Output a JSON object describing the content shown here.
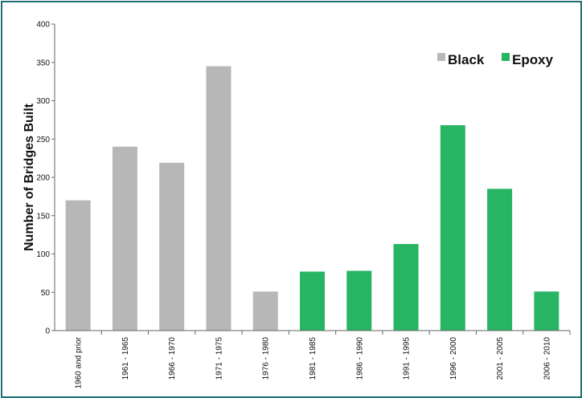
{
  "chart_data": {
    "type": "bar",
    "ylabel": "Number of Bridges Built",
    "xlabel": "",
    "ylim": [
      0,
      400
    ],
    "yticks": [
      0,
      50,
      100,
      150,
      200,
      250,
      300,
      350,
      400
    ],
    "grid": false,
    "legend_position": "top-right",
    "categories": [
      "1960 and prior",
      "1961 - 1965",
      "1966 - 1970",
      "1971 - 1975",
      "1976 - 1980",
      "1981 - 1985",
      "1986 - 1990",
      "1991 - 1995",
      "1996 - 2000",
      "2001 - 2005",
      "2006 - 2010"
    ],
    "values": [
      170,
      240,
      219,
      345,
      51,
      77,
      78,
      113,
      268,
      185,
      51
    ],
    "bar_series": [
      "Black",
      "Black",
      "Black",
      "Black",
      "Black",
      "Epoxy",
      "Epoxy",
      "Epoxy",
      "Epoxy",
      "Epoxy",
      "Epoxy"
    ],
    "series": [
      {
        "name": "Black",
        "color": "#b7b7b7"
      },
      {
        "name": "Epoxy",
        "color": "#27b563"
      }
    ]
  }
}
